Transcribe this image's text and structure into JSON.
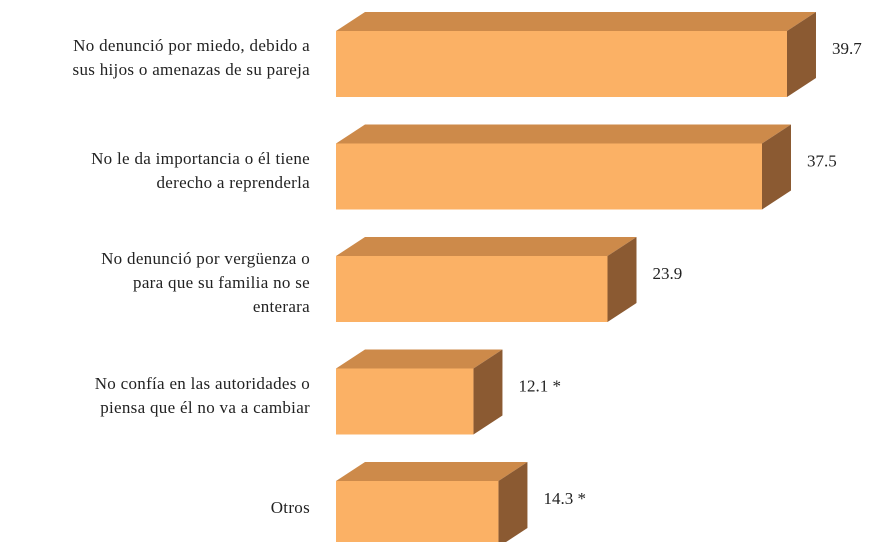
{
  "chart_data": {
    "type": "bar3d",
    "categories": [
      "No denunció por miedo, debido a\nsus hijos o amenazas de su pareja",
      "No le da importancia o él tiene\nderecho a reprenderla",
      "No denunció por vergüenza o\npara que su familia no se\nenterara",
      "No confía en las autoridades o\npiensa que él no va a cambiar",
      "Otros"
    ],
    "values": [
      39.7,
      37.5,
      23.9,
      12.1,
      14.3
    ],
    "value_labels": [
      "39.7",
      "37.5",
      "23.9",
      "12.1 *",
      "14.3 *"
    ],
    "colors": {
      "front": "#fbb165",
      "top": "#cd8a4a",
      "side": "#8b5a32"
    }
  }
}
